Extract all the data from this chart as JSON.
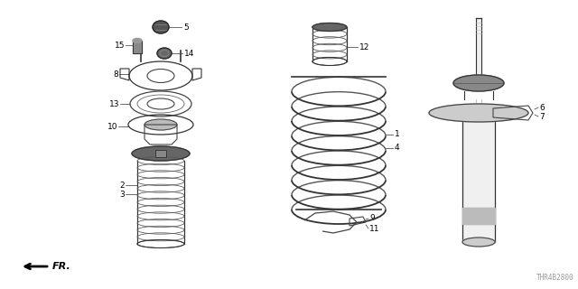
{
  "background_color": "#ffffff",
  "diagram_code": "THR4B2800",
  "fr_label": "FR.",
  "line_color": "#333333",
  "label_fontsize": 6.5,
  "leader_lw": 0.5
}
